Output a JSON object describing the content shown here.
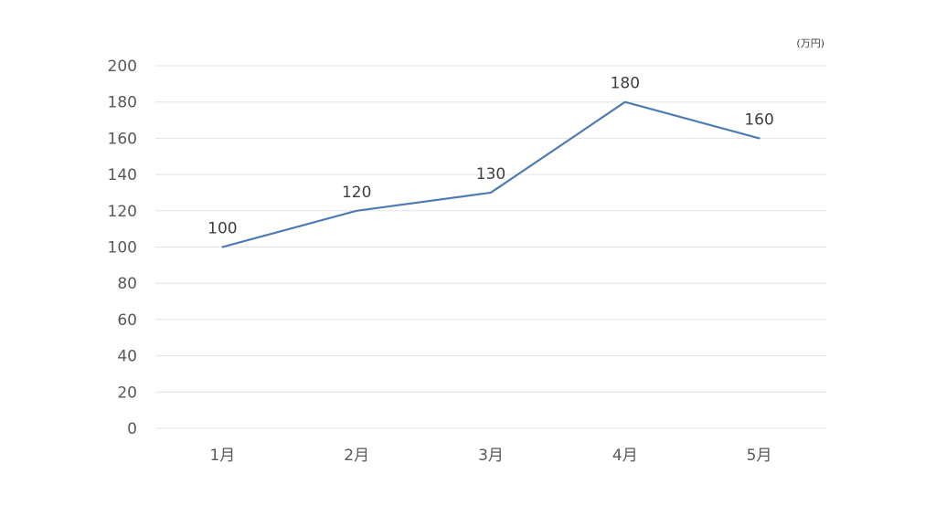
{
  "chart_data": {
    "type": "line",
    "unit_label": "(万円)",
    "categories": [
      "1月",
      "2月",
      "3月",
      "4月",
      "5月"
    ],
    "series": [
      {
        "values": [
          100,
          120,
          130,
          180,
          160
        ],
        "color": "#4f7bb5"
      }
    ],
    "ylim": [
      0,
      200
    ],
    "yticks": [
      0,
      20,
      40,
      60,
      80,
      100,
      120,
      140,
      160,
      180,
      200
    ],
    "grid": true,
    "data_labels": true,
    "legend": "none"
  }
}
